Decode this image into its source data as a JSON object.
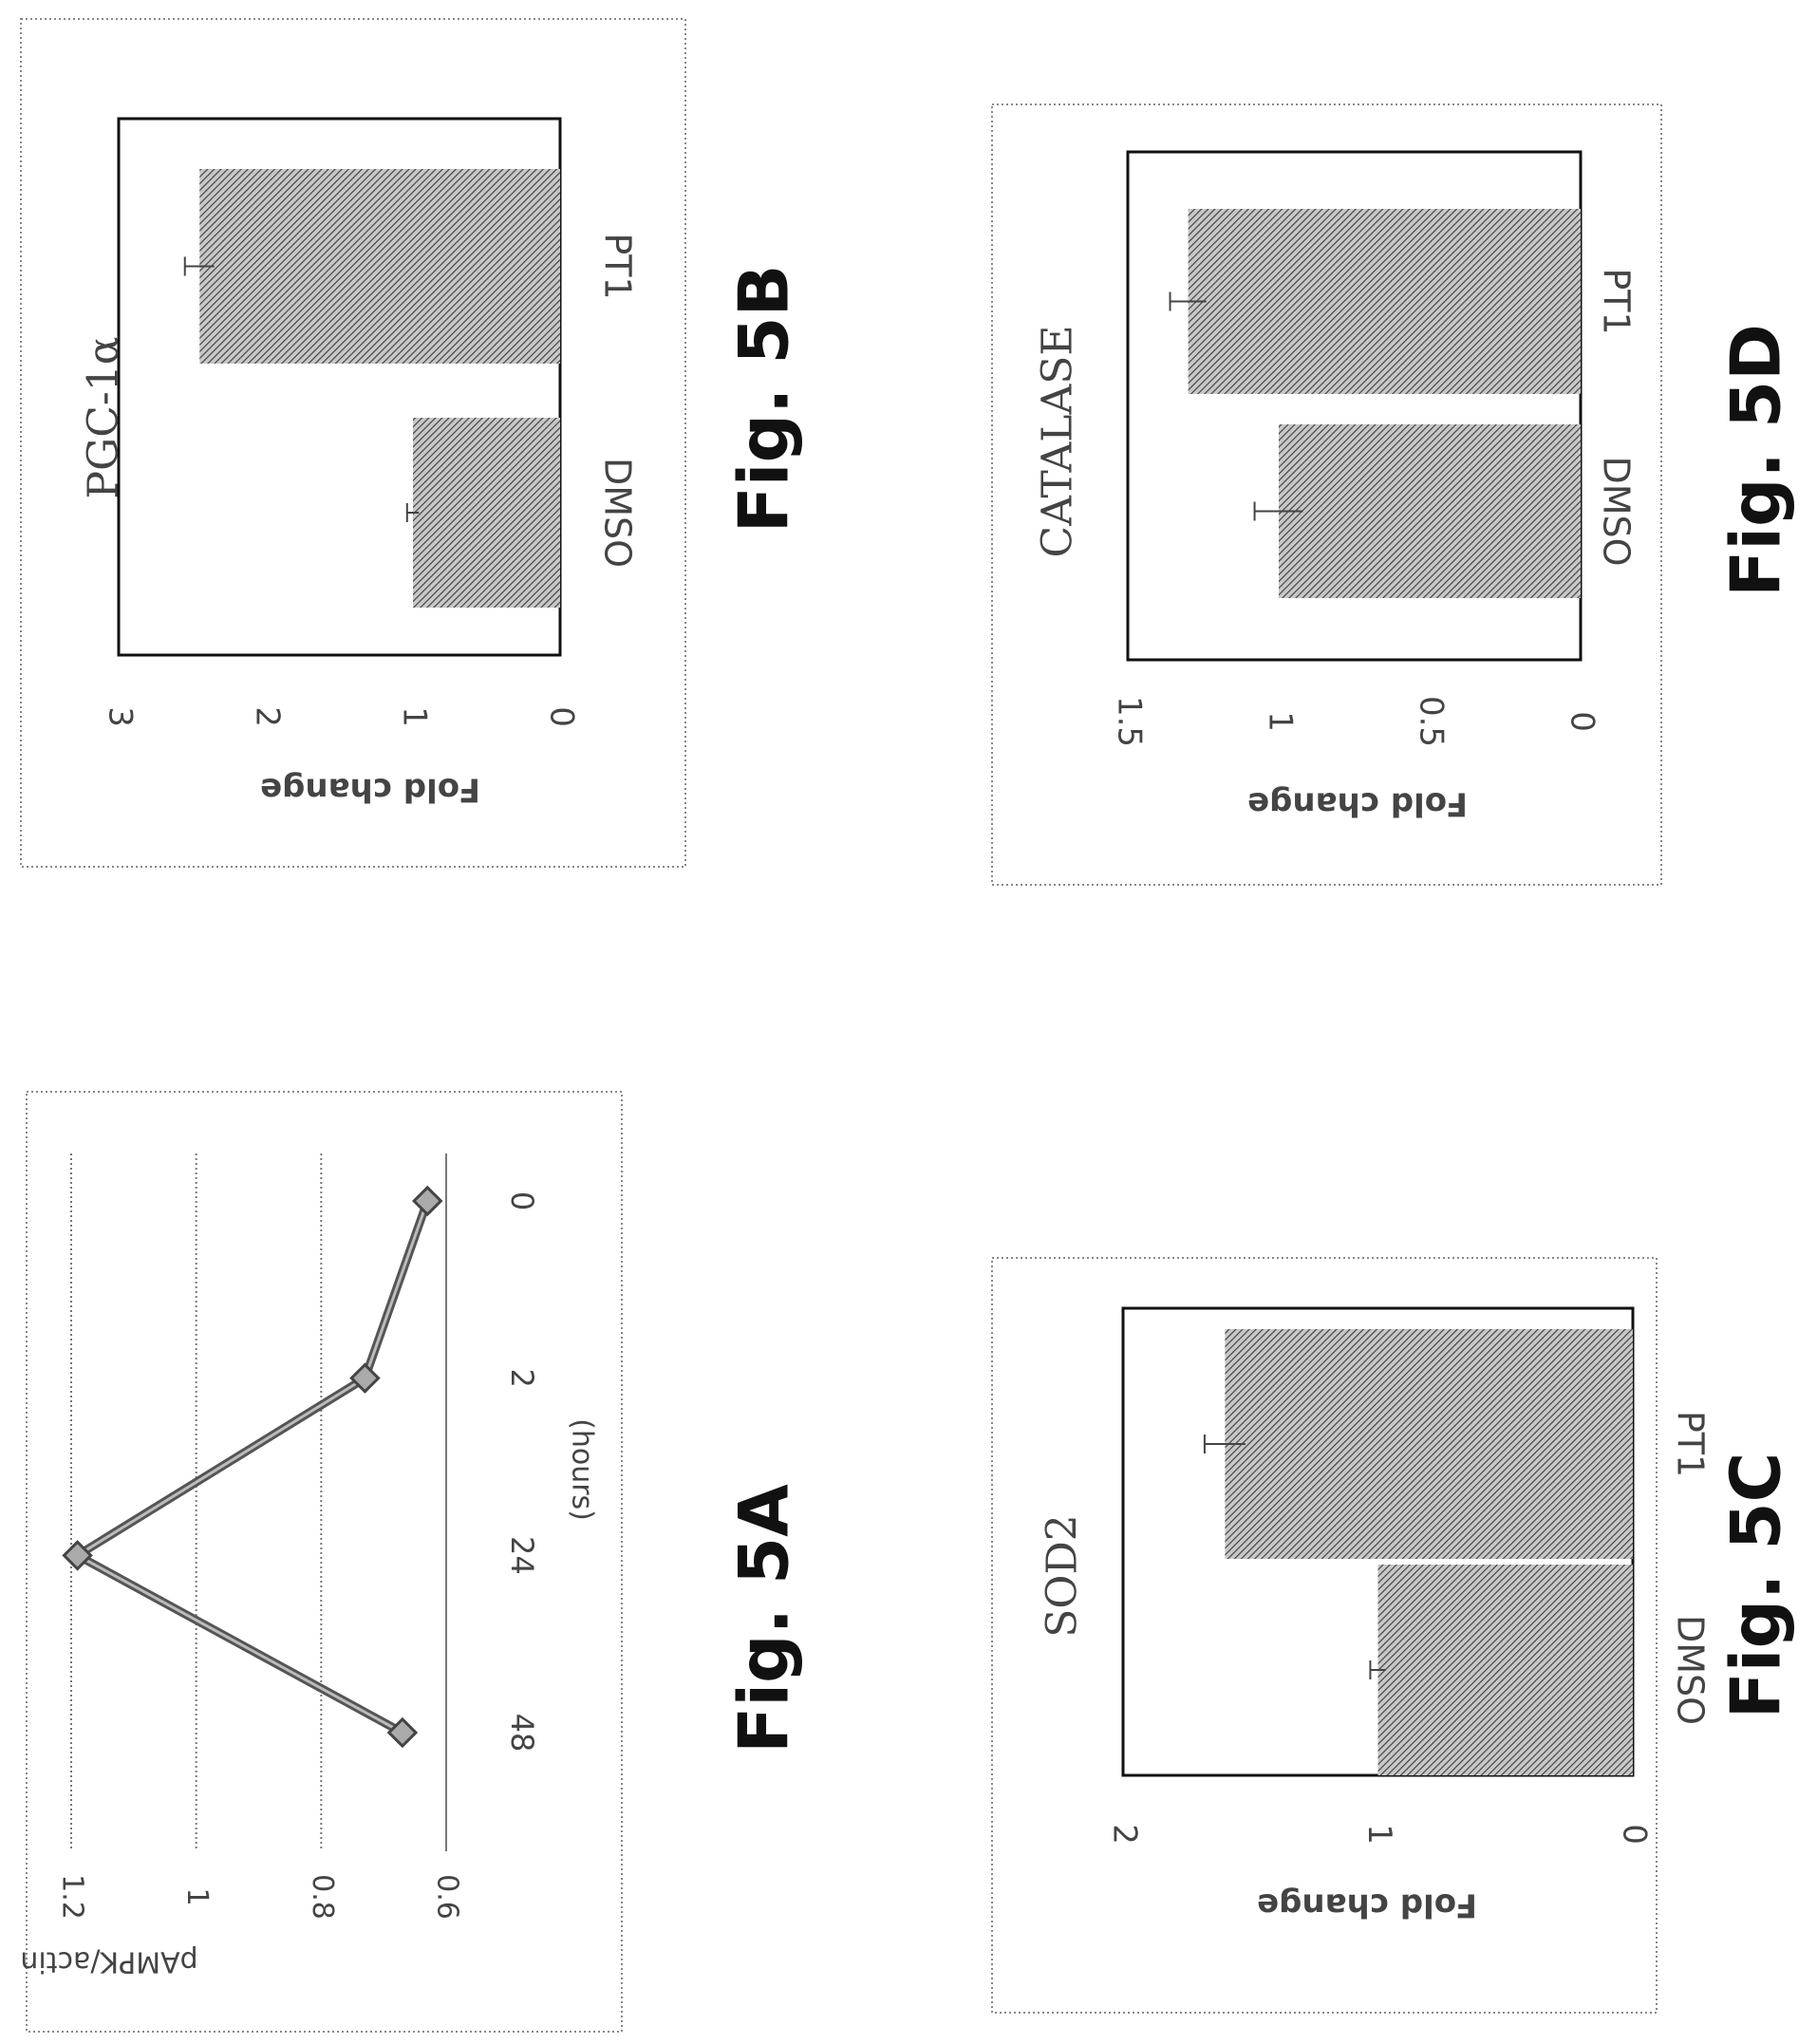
{
  "figures": {
    "a": {
      "caption": "Fig. 5A"
    },
    "b": {
      "caption": "Fig. 5B"
    },
    "c": {
      "caption": "Fig. 5C"
    },
    "d": {
      "caption": "Fig. 5D"
    }
  },
  "chart_data": [
    {
      "id": "5A",
      "type": "line",
      "title": "",
      "xlabel": "(hours)",
      "ylabel": "pAMPK/actin",
      "categories": [
        "0",
        "2",
        "24",
        "48"
      ],
      "x_ticks": [
        "0",
        "2",
        "24",
        "48"
      ],
      "y_ticks": [
        "0.6",
        "0.8",
        "1",
        "1.2"
      ],
      "ylim": [
        0.6,
        1.2
      ],
      "series": [
        {
          "values": [
            0.63,
            0.73,
            1.19,
            0.67
          ]
        }
      ],
      "grid": true,
      "marker": "diamond",
      "orientation": "rotated 90° clockwise"
    },
    {
      "id": "5B",
      "type": "bar",
      "title": "PGC-1α",
      "xlabel": "",
      "ylabel": "Fold change",
      "categories": [
        "DMSO",
        "PT1"
      ],
      "values": [
        1.0,
        2.45
      ],
      "errors": [
        0.04,
        0.1
      ],
      "y_ticks": [
        "0",
        "1",
        "2",
        "3"
      ],
      "ylim": [
        0,
        3
      ],
      "orientation": "rotated 90° clockwise"
    },
    {
      "id": "5C",
      "type": "bar",
      "title": "SOD2",
      "xlabel": "",
      "ylabel": "Fold change",
      "categories": [
        "DMSO",
        "PT1"
      ],
      "values": [
        1.0,
        1.6
      ],
      "errors": [
        0.03,
        0.08
      ],
      "y_ticks": [
        "0",
        "1",
        "2"
      ],
      "ylim": [
        0,
        2
      ],
      "orientation": "rotated 90° clockwise"
    },
    {
      "id": "5D",
      "type": "bar",
      "title": "CATALASE",
      "xlabel": "",
      "ylabel": "Fold change",
      "categories": [
        "DMSO",
        "PT1"
      ],
      "values": [
        1.0,
        1.3
      ],
      "errors": [
        0.08,
        0.06
      ],
      "y_ticks": [
        "0",
        "0.5",
        "1",
        "1.5"
      ],
      "ylim": [
        0,
        1.5
      ],
      "orientation": "rotated 90° clockwise"
    }
  ]
}
